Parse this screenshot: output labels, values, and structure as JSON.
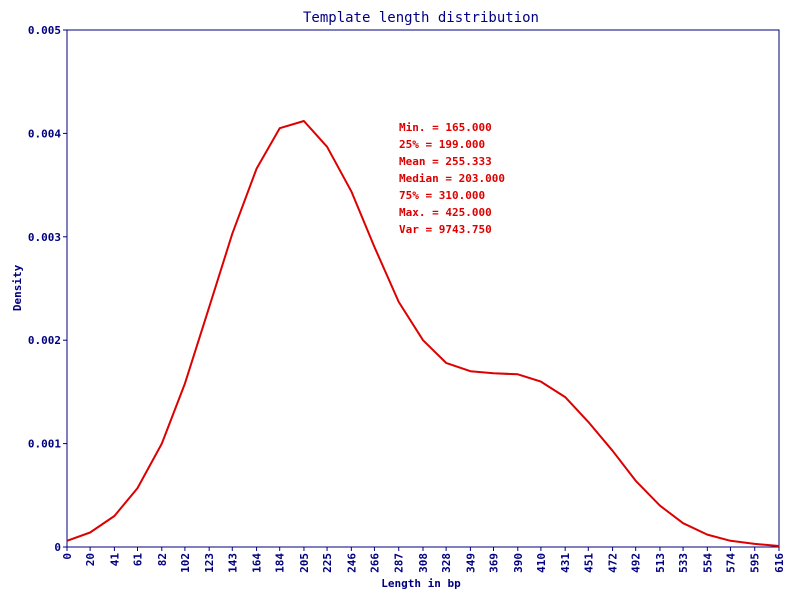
{
  "chart_data": {
    "type": "line",
    "title": "Template length distribution",
    "xlabel": "Length in bp",
    "ylabel": "Density",
    "xlim": [
      0,
      616
    ],
    "ylim": [
      0,
      0.005
    ],
    "grid": false,
    "x_ticks": [
      "0",
      "20",
      "41",
      "61",
      "82",
      "102",
      "123",
      "143",
      "164",
      "184",
      "205",
      "225",
      "246",
      "266",
      "287",
      "308",
      "328",
      "349",
      "369",
      "390",
      "410",
      "431",
      "451",
      "472",
      "492",
      "513",
      "533",
      "554",
      "574",
      "595",
      "616"
    ],
    "y_ticks": [
      "0",
      "0.001",
      "0.002",
      "0.003",
      "0.004",
      "0.005"
    ],
    "series": [
      {
        "color": "#dd0000",
        "x": [
          0,
          20,
          41,
          61,
          82,
          102,
          123,
          143,
          164,
          184,
          205,
          225,
          246,
          266,
          287,
          308,
          328,
          349,
          369,
          390,
          410,
          431,
          451,
          472,
          492,
          513,
          533,
          554,
          574,
          595,
          616
        ],
        "y": [
          6e-05,
          0.00014,
          0.0003,
          0.00057,
          0.001,
          0.00158,
          0.00232,
          0.00303,
          0.00366,
          0.00405,
          0.00412,
          0.00387,
          0.00344,
          0.0029,
          0.00237,
          0.002,
          0.00178,
          0.0017,
          0.00168,
          0.00167,
          0.0016,
          0.00145,
          0.00121,
          0.00093,
          0.00064,
          0.0004,
          0.00023,
          0.00012,
          6e-05,
          3e-05,
          1e-05
        ]
      }
    ],
    "annotations": [
      "Min. = 165.000",
      "25% = 199.000",
      "Mean = 255.333",
      "Median = 203.000",
      "75% = 310.000",
      "Max. = 425.000",
      "Var = 9743.750"
    ]
  }
}
